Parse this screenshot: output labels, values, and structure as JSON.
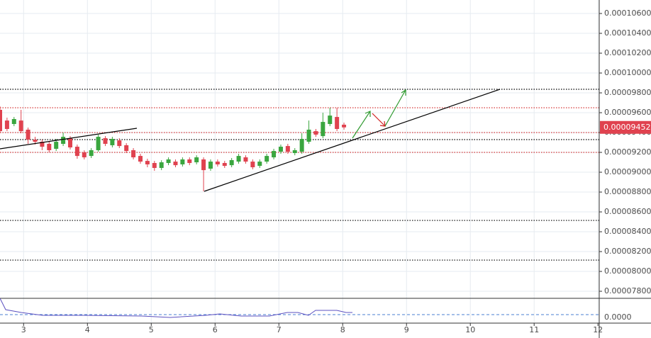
{
  "chart_data": {
    "type": "candlestick",
    "xlim": [
      2.63,
      12.02
    ],
    "xticks": [
      3,
      4,
      5,
      6,
      7,
      8,
      9,
      10,
      11,
      12
    ],
    "ylim": [
      7.736e-05,
      0.00010736
    ],
    "yticks": [
      {
        "value": 7.8e-05,
        "label": "0.00007800"
      },
      {
        "value": 8e-05,
        "label": "0.00008000"
      },
      {
        "value": 8.2e-05,
        "label": "0.00008200"
      },
      {
        "value": 8.4e-05,
        "label": "0.00008400"
      },
      {
        "value": 8.6e-05,
        "label": "0.00008600"
      },
      {
        "value": 8.8e-05,
        "label": "0.00008800"
      },
      {
        "value": 9e-05,
        "label": "0.00009000"
      },
      {
        "value": 9.2e-05,
        "label": "0.00009200"
      },
      {
        "value": 9.4e-05,
        "label": "0.00009400"
      },
      {
        "value": 9.6e-05,
        "label": "0.00009600"
      },
      {
        "value": 9.8e-05,
        "label": "0.00009800"
      },
      {
        "value": 0.0001,
        "label": "0.00010000"
      },
      {
        "value": 0.000102,
        "label": "0.00010200"
      },
      {
        "value": 0.000104,
        "label": "0.00010400"
      },
      {
        "value": 0.000106,
        "label": "0.00010600"
      }
    ],
    "grid": true,
    "up_color": "#3aa63f",
    "down_color": "#e0424f",
    "last_price": {
      "value": 9.452e-05,
      "label": "0.00009452"
    },
    "levels": [
      {
        "value": 9.836e-05,
        "color": "#000000"
      },
      {
        "value": 9.65e-05,
        "color": "#d02020"
      },
      {
        "value": 9.4e-05,
        "color": "#d02020"
      },
      {
        "value": 9.329e-05,
        "color": "#000000"
      },
      {
        "value": 9.2e-05,
        "color": "#d02020"
      },
      {
        "value": 8.514e-05,
        "color": "#000000"
      },
      {
        "value": 8.114e-05,
        "color": "#000000"
      }
    ],
    "indicator_yticks": [
      {
        "value": 0,
        "label": "0.0000"
      }
    ],
    "candles": {
      "x": [
        2.63,
        2.74,
        2.85,
        2.96,
        3.07,
        3.18,
        3.29,
        3.4,
        3.51,
        3.62,
        3.73,
        3.84,
        3.95,
        4.06,
        4.17,
        4.28,
        4.39,
        4.5,
        4.61,
        4.72,
        4.83,
        4.94,
        5.05,
        5.16,
        5.27,
        5.38,
        5.49,
        5.6,
        5.71,
        5.82,
        5.93,
        6.04,
        6.15,
        6.26,
        6.37,
        6.48,
        6.59,
        6.7,
        6.81,
        6.92,
        7.03,
        7.14,
        7.25,
        7.36,
        7.47,
        7.58,
        7.69,
        7.8,
        7.91,
        8.02
      ],
      "open": [
        9.629e-05,
        9.521e-05,
        9.486e-05,
        9.521e-05,
        9.429e-05,
        9.329e-05,
        9.307e-05,
        9.286e-05,
        9.236e-05,
        9.286e-05,
        9.343e-05,
        9.257e-05,
        9.2e-05,
        9.164e-05,
        9.222e-05,
        9.343e-05,
        9.272e-05,
        9.321e-05,
        9.272e-05,
        9.222e-05,
        9.164e-05,
        9.114e-05,
        9.093e-05,
        9.043e-05,
        9.093e-05,
        9.107e-05,
        9.079e-05,
        9.129e-05,
        9.1e-05,
        9.129e-05,
        9.036e-05,
        9.107e-05,
        9.093e-05,
        9.071e-05,
        9.107e-05,
        9.15e-05,
        9.107e-05,
        9.064e-05,
        9.107e-05,
        9.15e-05,
        9.207e-05,
        9.264e-05,
        9.193e-05,
        9.207e-05,
        9.307e-05,
        9.414e-05,
        9.364e-05,
        9.486e-05,
        9.557e-05,
        9.479e-05
      ],
      "high": [
        9.664e-05,
        9.55e-05,
        9.557e-05,
        9.629e-05,
        9.45e-05,
        9.357e-05,
        9.329e-05,
        9.307e-05,
        9.336e-05,
        9.4e-05,
        9.364e-05,
        9.279e-05,
        9.221e-05,
        9.243e-05,
        9.379e-05,
        9.364e-05,
        9.357e-05,
        9.343e-05,
        9.293e-05,
        9.243e-05,
        9.186e-05,
        9.136e-05,
        9.114e-05,
        9.121e-05,
        9.15e-05,
        9.129e-05,
        9.15e-05,
        9.15e-05,
        9.171e-05,
        9.15e-05,
        9.129e-05,
        9.129e-05,
        9.114e-05,
        9.143e-05,
        9.186e-05,
        9.171e-05,
        9.129e-05,
        9.129e-05,
        9.186e-05,
        9.236e-05,
        9.279e-05,
        9.286e-05,
        9.243e-05,
        9.393e-05,
        9.521e-05,
        9.436e-05,
        9.6e-05,
        9.65e-05,
        9.65e-05,
        9.5e-05
      ],
      "low": [
        9.393e-05,
        9.414e-05,
        9.464e-05,
        9.393e-05,
        9.286e-05,
        9.279e-05,
        9.222e-05,
        9.2e-05,
        9.214e-05,
        9.264e-05,
        9.229e-05,
        9.136e-05,
        9.129e-05,
        9.143e-05,
        9.207e-05,
        9.264e-05,
        9.25e-05,
        9.243e-05,
        9.193e-05,
        9.129e-05,
        9.086e-05,
        9.05e-05,
        9.014e-05,
        9.021e-05,
        9.071e-05,
        9.05e-05,
        9.057e-05,
        9.071e-05,
        9.079e-05,
        8.807e-05,
        9.014e-05,
        9.057e-05,
        9.043e-05,
        9.05e-05,
        9.086e-05,
        9.086e-05,
        9.029e-05,
        9.043e-05,
        9.086e-05,
        9.129e-05,
        9.186e-05,
        9.186e-05,
        9.171e-05,
        9.186e-05,
        9.286e-05,
        9.357e-05,
        9.343e-05,
        9.464e-05,
        9.414e-05,
        9.429e-05
      ],
      "close": [
        9.414e-05,
        9.436e-05,
        9.536e-05,
        9.414e-05,
        9.329e-05,
        9.307e-05,
        9.257e-05,
        9.222e-05,
        9.307e-05,
        9.357e-05,
        9.25e-05,
        9.164e-05,
        9.15e-05,
        9.222e-05,
        9.357e-05,
        9.286e-05,
        9.336e-05,
        9.264e-05,
        9.214e-05,
        9.15e-05,
        9.107e-05,
        9.079e-05,
        9.043e-05,
        9.1e-05,
        9.129e-05,
        9.071e-05,
        9.129e-05,
        9.093e-05,
        9.15e-05,
        9.021e-05,
        9.107e-05,
        9.079e-05,
        9.064e-05,
        9.122e-05,
        9.164e-05,
        9.107e-05,
        9.05e-05,
        9.107e-05,
        9.164e-05,
        9.214e-05,
        9.257e-05,
        9.207e-05,
        9.222e-05,
        9.336e-05,
        9.429e-05,
        9.379e-05,
        9.507e-05,
        9.571e-05,
        9.436e-05,
        9.452e-05
      ]
    }
  }
}
